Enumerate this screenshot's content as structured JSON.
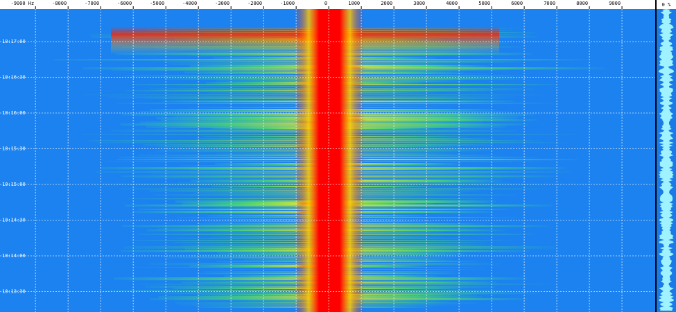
{
  "frequency_axis": {
    "ticks": [
      {
        "value": -9000,
        "label": "-9000 Hz"
      },
      -8000,
      -7000,
      -6000,
      -5000,
      -4000,
      -3000,
      -2000,
      -1000,
      0,
      1000,
      2000,
      3000,
      4000,
      5000,
      6000,
      7000,
      8000,
      9000
    ],
    "xlim": [
      -10090,
      10020
    ]
  },
  "time_axis": {
    "labels": [
      "10:17:00",
      "10:16:30",
      "10:16:00",
      "10:15:30",
      "10:15:00",
      "10:14:30",
      "10:14:00",
      "10:13:30"
    ]
  },
  "level_panel": {
    "label": "0 %"
  }
}
